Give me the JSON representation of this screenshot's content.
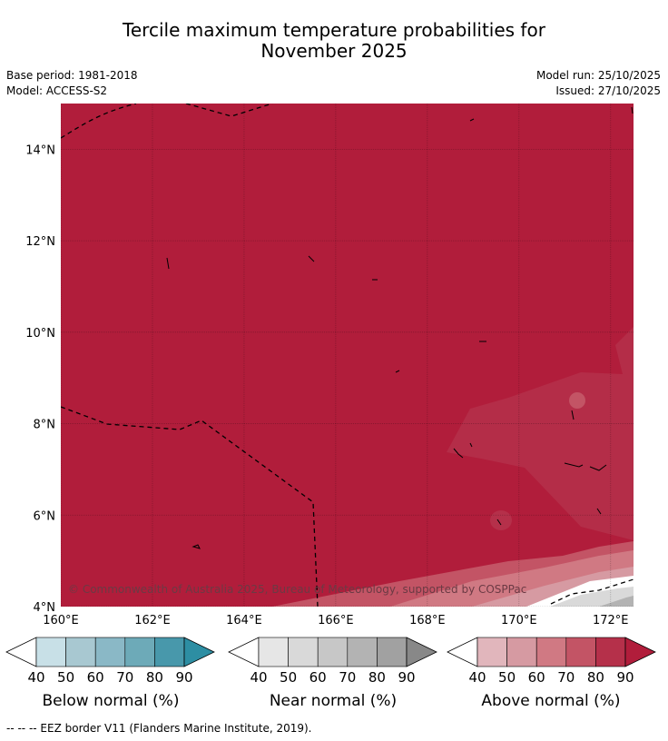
{
  "title_line1": "Tercile maximum temperature probabilities for",
  "title_line2": "November 2025",
  "base_period": "Base period: 1981-2018",
  "model": "Model: ACCESS-S2",
  "model_run": "Model run: 25/10/2025",
  "issued": "Issued: 27/10/2025",
  "copyright": "© Commonwealth of Australia 2025, Bureau of Meteorology, supported by COSPPac",
  "footer": "--  --  -- EEZ border V11 (Flanders Marine Institute, 2019).",
  "map": {
    "lon_range": [
      160,
      172.5
    ],
    "lat_range": [
      4,
      15
    ],
    "x_ticks": [
      {
        "value": 160,
        "label": "160°E"
      },
      {
        "value": 162,
        "label": "162°E"
      },
      {
        "value": 164,
        "label": "164°E"
      },
      {
        "value": 166,
        "label": "166°E"
      },
      {
        "value": 168,
        "label": "168°E"
      },
      {
        "value": 170,
        "label": "170°E"
      },
      {
        "value": 172,
        "label": "172°E"
      }
    ],
    "y_ticks": [
      {
        "value": 14,
        "label": "14°N"
      },
      {
        "value": 12,
        "label": "12°N"
      },
      {
        "value": 10,
        "label": "10°N"
      },
      {
        "value": 8,
        "label": "8°N"
      },
      {
        "value": 6,
        "label": "6°N"
      },
      {
        "value": 4,
        "label": "4°N"
      }
    ],
    "dominant_category": "Above normal",
    "dominant_band": "80-90",
    "colors": {
      "above": [
        "#ffffff",
        "#e1b6bc",
        "#d69aa2",
        "#d07983",
        "#c35465",
        "#b5304a",
        "#b11d3b"
      ],
      "near": [
        "#ffffff",
        "#e6e6e6",
        "#d9d9d9",
        "#c7c7c7",
        "#b3b3b3",
        "#a1a1a1",
        "#888888"
      ],
      "below": [
        "#ffffff",
        "#c8e0e7",
        "#a8c8d1",
        "#8ab8c6",
        "#6daab8",
        "#4898ab",
        "#2d8ea3"
      ]
    }
  },
  "colorbars": [
    {
      "key": "below",
      "label": "Below normal (%)",
      "ticks": [
        "40",
        "50",
        "60",
        "70",
        "80",
        "90"
      ]
    },
    {
      "key": "near",
      "label": "Near normal (%)",
      "ticks": [
        "40",
        "50",
        "60",
        "70",
        "80",
        "90"
      ]
    },
    {
      "key": "above",
      "label": "Above normal (%)",
      "ticks": [
        "40",
        "50",
        "60",
        "70",
        "80",
        "90"
      ]
    }
  ]
}
